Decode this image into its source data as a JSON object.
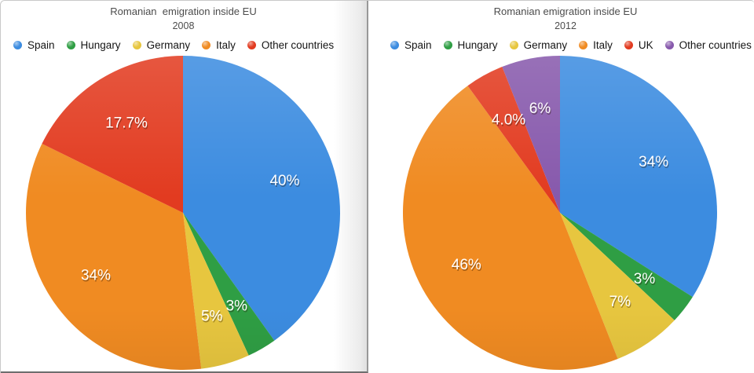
{
  "chart_data": [
    {
      "type": "pie",
      "title": "Romanian  emigration inside EU",
      "subtitle": "2008",
      "legend_position": "top",
      "direction": "clockwise",
      "start_angle_deg": 0,
      "label_color": "#ffffff",
      "slices": [
        {
          "label": "Spain",
          "value": 40,
          "display": "40%",
          "color": "#3c8ce0"
        },
        {
          "label": "Hungary",
          "value": 3,
          "display": "3%",
          "color": "#2f9e44"
        },
        {
          "label": "Germany",
          "value": 5,
          "display": "5%",
          "color": "#e7c63f"
        },
        {
          "label": "Italy",
          "value": 34,
          "display": "34%",
          "color": "#f08b22"
        },
        {
          "label": "Other countries",
          "value": 17.7,
          "display": "17.7%",
          "color": "#e23b20"
        }
      ]
    },
    {
      "type": "pie",
      "title": "Romanian emigration inside EU",
      "subtitle": "2012",
      "legend_position": "top",
      "direction": "clockwise",
      "start_angle_deg": 0,
      "label_color": "#ffffff",
      "slices": [
        {
          "label": "Spain",
          "value": 34,
          "display": "34%",
          "color": "#3c8ce0"
        },
        {
          "label": "Hungary",
          "value": 3,
          "display": "3%",
          "color": "#2f9e44"
        },
        {
          "label": "Germany",
          "value": 7,
          "display": "7%",
          "color": "#e7c63f"
        },
        {
          "label": "Italy",
          "value": 46,
          "display": "46%",
          "color": "#f08b22"
        },
        {
          "label": "UK",
          "value": 4,
          "display": "4.0%",
          "color": "#e23b20"
        },
        {
          "label": "Other countries",
          "value": 6,
          "display": "6%",
          "color": "#8759ac"
        }
      ]
    }
  ]
}
